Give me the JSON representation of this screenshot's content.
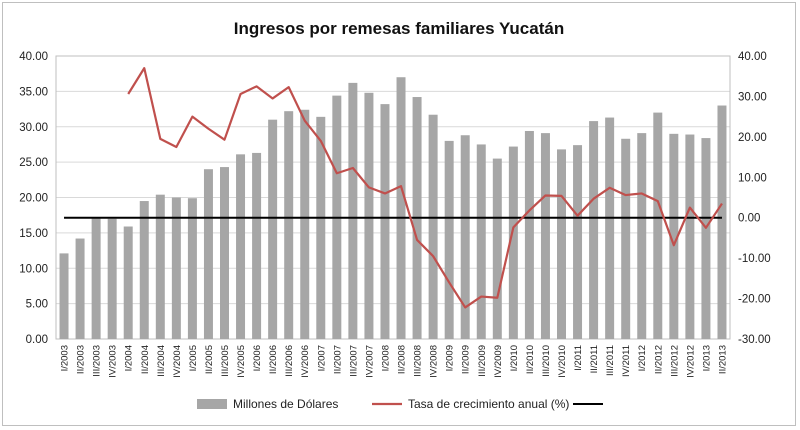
{
  "chart_data": {
    "type": "bar",
    "title": "Ingresos por remesas familiares Yucatán",
    "categories": [
      "I/2003",
      "II/2003",
      "III/2003",
      "IV/2003",
      "I/2004",
      "II/2004",
      "III/2004",
      "IV/2004",
      "I/2005",
      "II/2005",
      "III/2005",
      "IV/2005",
      "I/2006",
      "II/2006",
      "III/2006",
      "IV/2006",
      "I/2007",
      "II/2007",
      "III/2007",
      "IV/2007",
      "I/2008",
      "II/2008",
      "III/2008",
      "IV/2008",
      "I/2009",
      "II/2009",
      "III/2009",
      "IV/2009",
      "I/2010",
      "II/2010",
      "III/2010",
      "IV/2010",
      "I/2011",
      "II/2011",
      "III/2011",
      "IV/2011",
      "I/2012",
      "II/2012",
      "III/2012",
      "IV/2012",
      "I/2013",
      "II/2013"
    ],
    "series": [
      {
        "name": "Millones de Dólares",
        "type": "bar",
        "axis": "left",
        "color": "#a6a6a6",
        "values": [
          12.1,
          14.2,
          17.1,
          17.0,
          15.9,
          19.5,
          20.4,
          20.0,
          19.9,
          24.0,
          24.3,
          26.1,
          26.3,
          31.0,
          32.2,
          32.4,
          31.4,
          34.4,
          36.2,
          34.8,
          33.2,
          37.0,
          34.2,
          31.7,
          28.0,
          28.8,
          27.5,
          25.5,
          27.2,
          29.4,
          29.1,
          26.8,
          27.4,
          30.8,
          31.3,
          28.3,
          29.1,
          32.0,
          29.0,
          28.9,
          28.4,
          33.0
        ]
      },
      {
        "name": "Tasa de crecimiento anual (%)",
        "type": "line",
        "axis": "right",
        "color": "#c0504d",
        "values": [
          null,
          null,
          null,
          null,
          30.6,
          37.0,
          19.5,
          17.5,
          25.0,
          22.0,
          19.3,
          30.6,
          32.5,
          29.5,
          32.3,
          24.0,
          19.0,
          11.0,
          12.3,
          7.5,
          6.0,
          7.8,
          -5.5,
          -9.5,
          -16.0,
          -22.2,
          -19.5,
          -19.8,
          -2.4,
          1.8,
          5.5,
          5.4,
          0.5,
          4.7,
          7.4,
          5.6,
          6.0,
          4.1,
          -6.8,
          2.5,
          -2.5,
          3.5
        ]
      },
      {
        "name": "",
        "type": "line",
        "axis": "right",
        "color": "#000000",
        "values": [
          0,
          0,
          0,
          0,
          0,
          0,
          0,
          0,
          0,
          0,
          0,
          0,
          0,
          0,
          0,
          0,
          0,
          0,
          0,
          0,
          0,
          0,
          0,
          0,
          0,
          0,
          0,
          0,
          0,
          0,
          0,
          0,
          0,
          0,
          0,
          0,
          0,
          0,
          0,
          0,
          0,
          0
        ]
      }
    ],
    "y_left": {
      "min": 0,
      "max": 40,
      "step": 5,
      "tick_labels": [
        "0.00",
        "5.00",
        "10.00",
        "15.00",
        "20.00",
        "25.00",
        "30.00",
        "35.00",
        "40.00"
      ]
    },
    "y_right": {
      "min": -30,
      "max": 40,
      "step": 10,
      "tick_labels": [
        "-30.00",
        "-20.00",
        "-10.00",
        "0.00",
        "10.00",
        "20.00",
        "30.00",
        "40.00"
      ]
    },
    "grid": true,
    "legend_position": "bottom"
  }
}
